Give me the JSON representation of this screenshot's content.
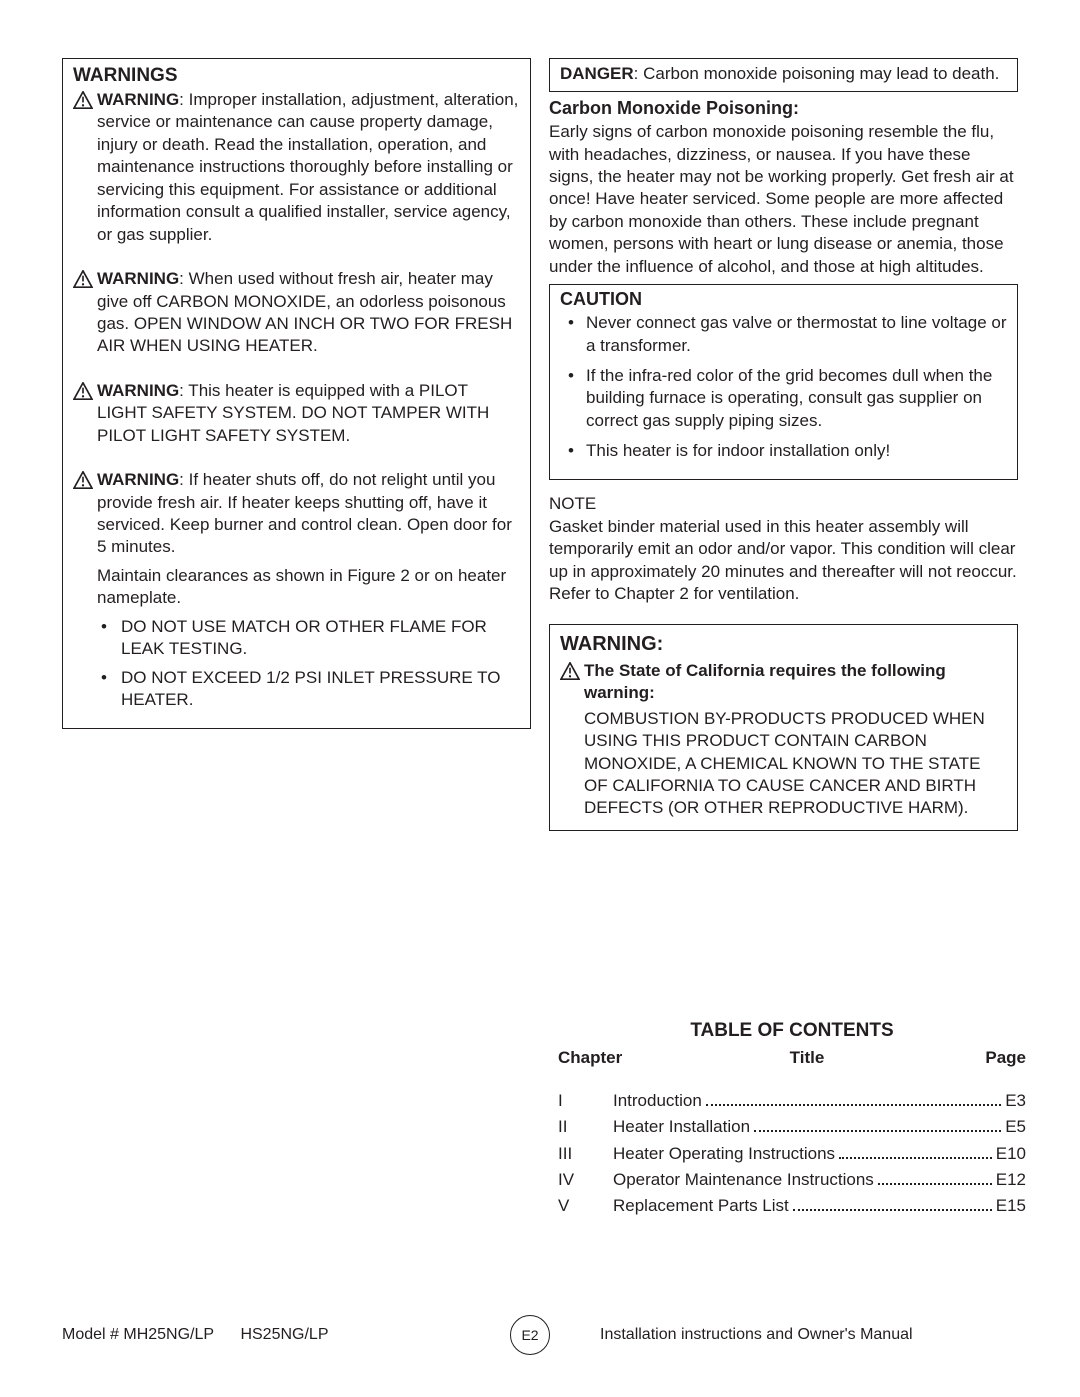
{
  "left": {
    "heading": "WARNINGS",
    "items": [
      {
        "label": "WARNING",
        "text": ": Improper installation, adjustment, alteration, service or maintenance can cause property damage, injury or death. Read the installation, operation, and maintenance instructions thoroughly before installing or servicing this equipment.  For assistance or additional information consult a qualified installer, service agency, or gas supplier."
      },
      {
        "label": "WARNING",
        "text": ": When used without fresh air, heater may give off CARBON MONOXIDE, an odorless poisonous gas. OPEN WINDOW AN INCH OR TWO FOR FRESH AIR WHEN USING HEATER."
      },
      {
        "label": "WARNING",
        "text": ": This heater is equipped with a PILOT LIGHT SAFETY SYSTEM. DO NOT TAMPER WITH PILOT LIGHT SAFETY SYSTEM."
      },
      {
        "label": "WARNING",
        "text": ": If heater shuts off, do not relight until you provide fresh air. If heater keeps shutting off, have it serviced. Keep burner and control clean. Open door for 5 minutes."
      }
    ],
    "maintain": "Maintain clearances as shown in Figure 2 or on heater nameplate.",
    "bullets": [
      "DO NOT USE MATCH OR OTHER FLAME FOR LEAK TESTING.",
      "DO NOT EXCEED 1/2 PSI INLET PRESSURE TO HEATER."
    ]
  },
  "right": {
    "danger_label": "DANGER",
    "danger_text": ": Carbon monoxide poisoning may lead to death.",
    "co_heading": "Carbon Monoxide Poisoning:",
    "co_text": "Early signs of carbon monoxide poisoning resemble the flu, with headaches, dizziness, or nausea.  If you have these signs, the heater may not be working properly. Get fresh air at once! Have heater serviced.  Some people are more affected by carbon monoxide than others.  These include pregnant women, persons with heart or lung disease or anemia, those under the influence of alcohol, and those at high altitudes.",
    "caution_heading": "CAUTION",
    "caution_items": [
      "Never connect gas valve or thermostat to line voltage or a transformer.",
      "If the infra-red color of the grid becomes dull when the building furnace is operating, consult gas supplier on correct gas supply piping sizes.",
      "This heater is for indoor installation only!"
    ],
    "note_label": "NOTE",
    "note_text": "Gasket binder material used in this heater assembly will temporarily emit an odor and/or vapor. This condition will clear up in approximately 20 minutes and thereafter will not reoccur. Refer to Chapter 2 for ventilation.",
    "ca_head": "WARNING:",
    "ca_line": "The State of California requires the following warning:",
    "ca_body": "COMBUSTION BY-PRODUCTS PRODUCED WHEN USING THIS PRODUCT CONTAIN CARBON MONOXIDE, A CHEMICAL KNOWN TO THE STATE OF CALIFORNIA TO CAUSE CANCER AND BIRTH DEFECTS (OR OTHER REPRODUCTIVE HARM)."
  },
  "toc": {
    "title": "TABLE OF CONTENTS",
    "h1": "Chapter",
    "h2": "Title",
    "h3": "Page",
    "rows": [
      {
        "ch": "I",
        "ti": "Introduction",
        "pg": "E3"
      },
      {
        "ch": "II",
        "ti": "Heater Installation",
        "pg": "E5"
      },
      {
        "ch": "III",
        "ti": "Heater Operating Instructions",
        "pg": "E10"
      },
      {
        "ch": "IV",
        "ti": "Operator Maintenance Instructions",
        "pg": "E12"
      },
      {
        "ch": "V",
        "ti": "Replacement Parts List",
        "pg": "E15"
      }
    ]
  },
  "footer": {
    "left": "Model # MH25NG/LP      HS25NG/LP",
    "mid": "E2",
    "right": "Installation instructions and Owner's Manual"
  }
}
